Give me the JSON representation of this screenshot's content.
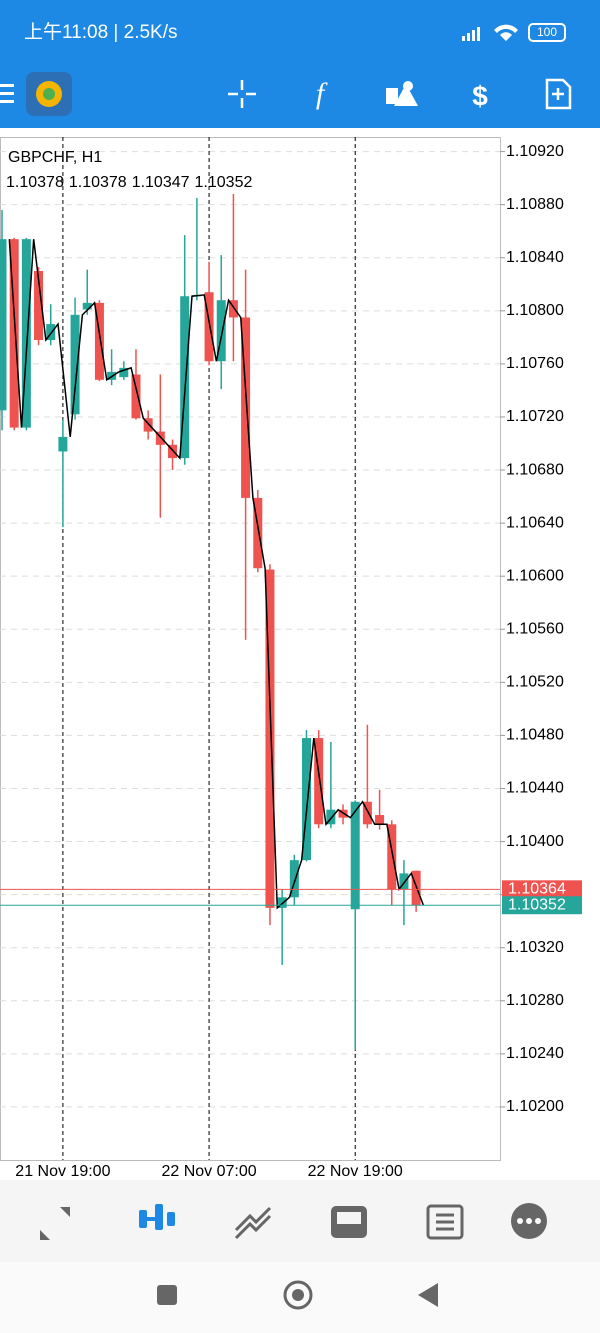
{
  "status_bar": {
    "time": "上午11:08 | 2.5K/s",
    "battery": "100"
  },
  "chart_data": {
    "type": "candlestick",
    "title": "GBPCHF, H1",
    "categories": [
      null,
      null,
      null,
      null,
      null,
      "21 Nov 19:00",
      null,
      null,
      null,
      null,
      null,
      null,
      null,
      null,
      null,
      null,
      null,
      "22 Nov 07:00",
      null,
      null,
      null,
      null,
      null,
      null,
      null,
      null,
      null,
      null,
      null,
      "22 Nov 19:00",
      null,
      null,
      null,
      null,
      null
    ],
    "open": [
      1.10725,
      1.10854,
      1.10712,
      1.1083,
      1.10778,
      1.10694,
      1.10722,
      1.10801,
      1.10806,
      1.10748,
      1.1075,
      1.10752,
      1.10719,
      1.10709,
      1.10699,
      1.10689,
      1.10811,
      1.10814,
      1.10762,
      1.10808,
      1.10795,
      1.10659,
      1.10605,
      1.1035,
      1.10358,
      1.10386,
      1.10478,
      1.10413,
      1.10424,
      1.10349,
      1.1043,
      1.1042,
      1.10413,
      1.10364,
      1.10378
    ],
    "high": [
      1.10876,
      1.10855,
      1.10855,
      1.10833,
      1.10805,
      1.10718,
      1.1081,
      1.10831,
      1.10808,
      1.10771,
      1.10762,
      1.10771,
      1.10725,
      1.10752,
      1.10703,
      1.10857,
      1.10885,
      1.10837,
      1.10842,
      1.10888,
      1.10831,
      1.10665,
      1.10609,
      1.10364,
      1.1039,
      1.10484,
      1.10484,
      1.10475,
      1.10428,
      1.10431,
      1.10488,
      1.10439,
      1.10416,
      1.10386,
      1.10378
    ],
    "low": [
      1.1071,
      1.1071,
      1.1071,
      1.10774,
      1.10774,
      1.10637,
      1.10718,
      1.10797,
      1.10747,
      1.10744,
      1.10748,
      1.10718,
      1.10703,
      1.10644,
      1.1068,
      1.10684,
      1.10808,
      1.10759,
      1.10741,
      1.10762,
      1.10552,
      1.10603,
      1.10337,
      1.10307,
      1.10352,
      1.10385,
      1.1041,
      1.1041,
      1.10413,
      1.10243,
      1.1041,
      1.10409,
      1.10352,
      1.10337,
      1.10347
    ],
    "close": [
      1.10854,
      1.10712,
      1.10854,
      1.10778,
      1.1079,
      1.10705,
      1.10797,
      1.10806,
      1.10748,
      1.10754,
      1.10757,
      1.10719,
      1.10709,
      1.10699,
      1.10689,
      1.10811,
      1.10812,
      1.10762,
      1.10808,
      1.10795,
      1.10659,
      1.10606,
      1.1035,
      1.10358,
      1.10386,
      1.10478,
      1.10413,
      1.10424,
      1.10418,
      1.1043,
      1.10413,
      1.10413,
      1.10364,
      1.10376,
      1.10352
    ],
    "up_color": "#26a69a",
    "down_color": "#ef5350",
    "line_color": "#000000",
    "ylim": [
      1.1016,
      1.10931
    ],
    "yticks": [
      {
        "value": 1.102,
        "label": "1.10200"
      },
      {
        "value": 1.1024,
        "label": "1.10240"
      },
      {
        "value": 1.1028,
        "label": "1.10280"
      },
      {
        "value": 1.1032,
        "label": "1.10320"
      },
      {
        "value": 1.1036,
        "label": "1.10360"
      },
      {
        "value": 1.104,
        "label": "1.10400"
      },
      {
        "value": 1.1044,
        "label": "1.10440"
      },
      {
        "value": 1.1048,
        "label": "1.10480"
      },
      {
        "value": 1.1052,
        "label": "1.10520"
      },
      {
        "value": 1.1056,
        "label": "1.10560"
      },
      {
        "value": 1.106,
        "label": "1.10600"
      },
      {
        "value": 1.1064,
        "label": "1.10640"
      },
      {
        "value": 1.1068,
        "label": "1.10680"
      },
      {
        "value": 1.1072,
        "label": "1.10720"
      },
      {
        "value": 1.1076,
        "label": "1.10760"
      },
      {
        "value": 1.108,
        "label": "1.10800"
      },
      {
        "value": 1.1084,
        "label": "1.10840"
      },
      {
        "value": 1.1088,
        "label": "1.10880"
      },
      {
        "value": 1.1092,
        "label": "1.10920"
      }
    ],
    "grid": true,
    "price_lines": [
      {
        "value": 1.10364,
        "color": "#ef5350"
      },
      {
        "value": 1.10352,
        "color": "#26a69a"
      }
    ]
  }
}
